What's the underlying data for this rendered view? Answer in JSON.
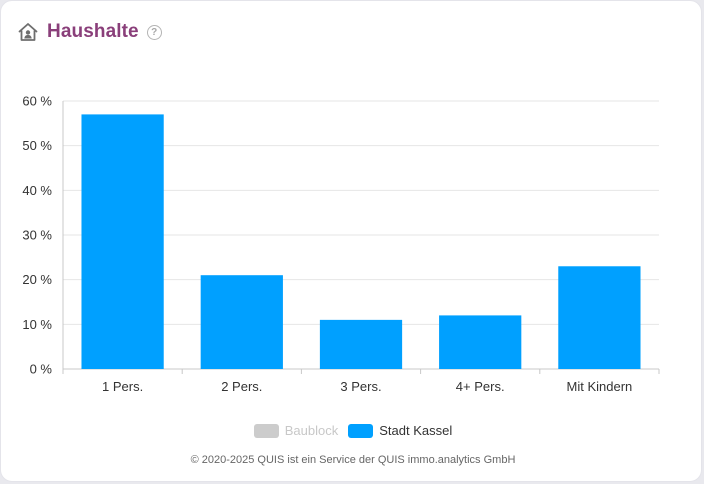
{
  "card": {
    "title": "Haushalte",
    "help_glyph": "?",
    "icons": {
      "header": "home-user-icon",
      "help": "help-circle-icon"
    }
  },
  "chart_data": {
    "type": "bar",
    "categories": [
      "1 Pers.",
      "2 Pers.",
      "3 Pers.",
      "4+ Pers.",
      "Mit Kindern"
    ],
    "series": [
      {
        "name": "Baublock",
        "values": [
          null,
          null,
          null,
          null,
          null
        ],
        "color": "#cccccc",
        "visible": false
      },
      {
        "name": "Stadt Kassel",
        "values": [
          57,
          21,
          11,
          12,
          23
        ],
        "color": "#00a0ff",
        "visible": true
      }
    ],
    "y_ticks": [
      "0 %",
      "10 %",
      "20 %",
      "30 %",
      "40 %",
      "50 %",
      "60 %"
    ],
    "y_tick_values": [
      0,
      10,
      20,
      30,
      40,
      50,
      60
    ],
    "ylim": [
      0,
      60
    ],
    "grid": true,
    "legend_position": "bottom"
  },
  "legend": {
    "items": [
      {
        "label": "Baublock",
        "color": "#cccccc",
        "active": false
      },
      {
        "label": "Stadt Kassel",
        "color": "#00a0ff",
        "active": true
      }
    ]
  },
  "footer": {
    "text": "© 2020-2025 QUIS ist ein Service der QUIS immo.analytics GmbH"
  },
  "colors": {
    "title": "#8a3f7a",
    "bar": "#00a0ff",
    "grid": "#e6e6e6",
    "axis_text": "#333333"
  }
}
